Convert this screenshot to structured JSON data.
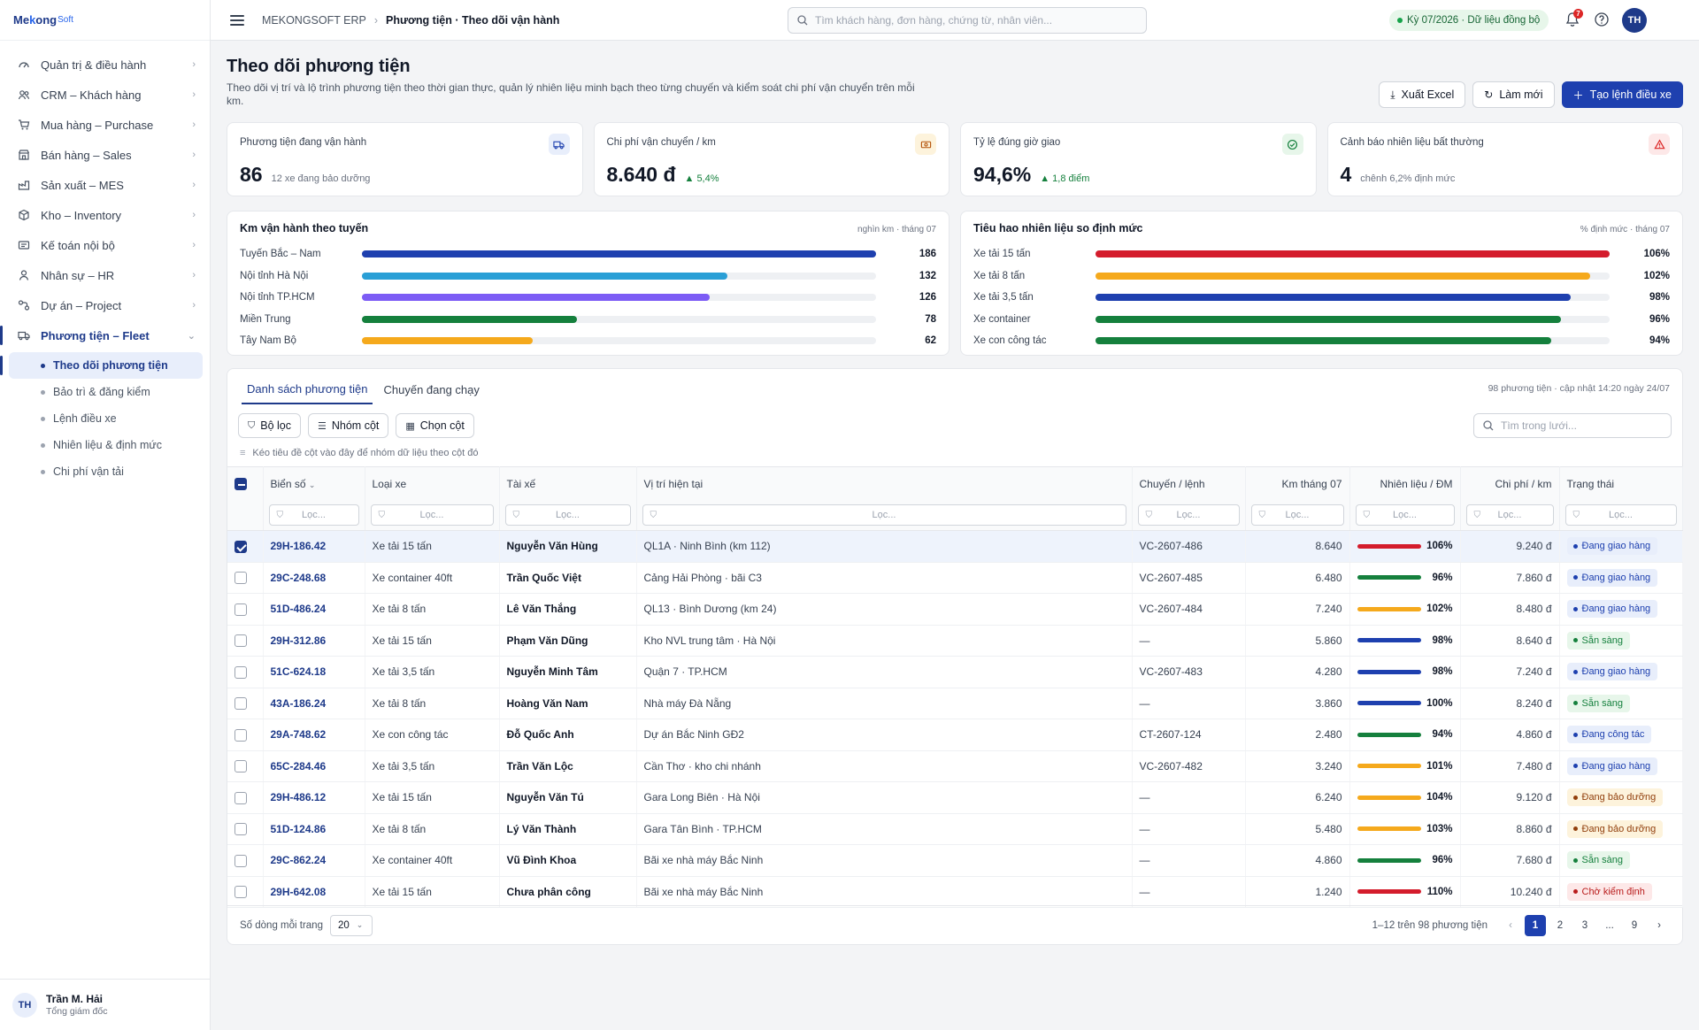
{
  "brand": {
    "main": "Me",
    "k": "k",
    "rest": "ong",
    "sub": "Soft"
  },
  "sidebar": {
    "items": [
      {
        "label": "Quản trị & điều hành",
        "icon": "gauge-icon"
      },
      {
        "label": "CRM – Khách hàng",
        "icon": "users-icon"
      },
      {
        "label": "Mua hàng – Purchase",
        "icon": "cart-icon"
      },
      {
        "label": "Bán hàng – Sales",
        "icon": "store-icon"
      },
      {
        "label": "Sản xuất – MES",
        "icon": "factory-icon"
      },
      {
        "label": "Kho – Inventory",
        "icon": "box-icon"
      },
      {
        "label": "Kế toán nội bộ",
        "icon": "ledger-icon"
      },
      {
        "label": "Nhân sự – HR",
        "icon": "person-icon"
      },
      {
        "label": "Dự án – Project",
        "icon": "project-icon"
      },
      {
        "label": "Phương tiện – Fleet",
        "icon": "truck-icon",
        "active": true
      }
    ],
    "subitems": [
      {
        "label": "Theo dõi phương tiện",
        "active": true
      },
      {
        "label": "Bảo trì & đăng kiểm"
      },
      {
        "label": "Lệnh điều xe"
      },
      {
        "label": "Nhiên liệu & định mức"
      },
      {
        "label": "Chi phí vận tải"
      }
    ],
    "user": {
      "initials": "TH",
      "name": "Trần M. Hải",
      "role": "Tổng giám đốc"
    }
  },
  "topbar": {
    "crumb_root": "MEKONGSOFT ERP",
    "crumb_current": "Phương tiện · Theo dõi vận hành",
    "search_placeholder": "Tìm khách hàng, đơn hàng, chứng từ, nhân viên...",
    "period": "Kỳ 07/2026 · Dữ liệu đồng bộ",
    "notif_count": "7",
    "avatar": "TH"
  },
  "page": {
    "title": "Theo dõi phương tiện",
    "desc": "Theo dõi vị trí và lộ trình phương tiện theo thời gian thực, quản lý nhiên liệu minh bạch theo từng chuyến và kiểm soát chi phí vận chuyển trên mỗi km.",
    "export_label": "Xuất Excel",
    "refresh_label": "Làm mới",
    "create_label": "Tạo lệnh điều xe"
  },
  "kpis": [
    {
      "title": "Phương tiện đang vận hành",
      "value": "86",
      "note": "12 xe đang bảo dưỡng",
      "icon": "truck-icon",
      "color": "#1e40af",
      "bg": "#e8eefb"
    },
    {
      "title": "Chi phí vận chuyển / km",
      "value": "8.640 đ",
      "delta": "▲ 5,4%",
      "icon": "cash-icon",
      "color": "#b45309",
      "bg": "#fdf3dc"
    },
    {
      "title": "Tỷ lệ đúng giờ giao",
      "value": "94,6%",
      "delta": "▲ 1,8 điểm",
      "icon": "check-circle-icon",
      "color": "#15803d",
      "bg": "#e7f6ea"
    },
    {
      "title": "Cảnh báo nhiên liệu bất thường",
      "value": "4",
      "note": "chênh 6,2% định mức",
      "icon": "warning-icon",
      "color": "#dc2626",
      "bg": "#fde8e8"
    }
  ],
  "route_chart": {
    "title": "Km vận hành theo tuyến",
    "unit": "nghìn km · tháng 07"
  },
  "fuel_chart": {
    "title": "Tiêu hao nhiên liệu so định mức",
    "unit": "% định mức · tháng 07"
  },
  "chart_data": [
    {
      "type": "bar",
      "orientation": "horizontal",
      "title": "Km vận hành theo tuyến",
      "categories": [
        "Tuyến Bắc – Nam",
        "Nội tỉnh Hà Nội",
        "Nội tỉnh TP.HCM",
        "Miền Trung",
        "Tây Nam Bộ"
      ],
      "values": [
        186,
        132,
        126,
        78,
        62
      ],
      "labels": [
        "186",
        "132",
        "126",
        "78",
        "62"
      ],
      "colors": [
        "#1e40af",
        "#2a9fd6",
        "#7c5cf5",
        "#15803d",
        "#f5a91c"
      ],
      "max": 186
    },
    {
      "type": "bar",
      "orientation": "horizontal",
      "title": "Tiêu hao nhiên liệu so định mức",
      "categories": [
        "Xe tải 15 tấn",
        "Xe tải 8 tấn",
        "Xe tải 3,5 tấn",
        "Xe container",
        "Xe con công tác"
      ],
      "values": [
        106,
        102,
        98,
        96,
        94
      ],
      "labels": [
        "106%",
        "102%",
        "98%",
        "96%",
        "94%"
      ],
      "colors": [
        "#d41c2c",
        "#f5a91c",
        "#1e40af",
        "#15803d",
        "#15803d"
      ],
      "max": 106
    }
  ],
  "grid": {
    "tabs": [
      "Danh sách phương tiện",
      "Chuyến đang chạy"
    ],
    "meta": "98 phương tiện · cập nhật 14:20 ngày 24/07",
    "tool_filter": "Bộ lọc",
    "tool_group": "Nhóm cột",
    "tool_columns": "Chọn cột",
    "search_placeholder": "Tìm trong lưới...",
    "hint": "Kéo tiêu đề cột vào đây để nhóm dữ liệu theo cột đó",
    "filter_placeholder": "Lọc...",
    "columns": [
      "Biển số",
      "Loại xe",
      "Tài xế",
      "Vị trí hiện tại",
      "Chuyến / lệnh",
      "Km tháng 07",
      "Nhiên liệu / ĐM",
      "Chi phí / km",
      "Trạng thái"
    ],
    "rows": [
      {
        "plate": "29H-186.42",
        "type": "Xe tải 15 tấn",
        "driver": "Nguyễn Văn Hùng",
        "loc": "QL1A · Ninh Bình (km 112)",
        "trip": "VC-2607-486",
        "km": "8.640",
        "fuel": "106%",
        "fuelColor": "#d41c2c",
        "cost": "9.240 đ",
        "status": "Đang giao hàng",
        "stype": "blue",
        "sel": true
      },
      {
        "plate": "29C-248.68",
        "type": "Xe container 40ft",
        "driver": "Trần Quốc Việt",
        "loc": "Cảng Hải Phòng · bãi C3",
        "trip": "VC-2607-485",
        "km": "6.480",
        "fuel": "96%",
        "fuelColor": "#15803d",
        "cost": "7.860 đ",
        "status": "Đang giao hàng",
        "stype": "blue"
      },
      {
        "plate": "51D-486.24",
        "type": "Xe tải 8 tấn",
        "driver": "Lê Văn Thắng",
        "loc": "QL13 · Bình Dương (km 24)",
        "trip": "VC-2607-484",
        "km": "7.240",
        "fuel": "102%",
        "fuelColor": "#f5a91c",
        "cost": "8.480 đ",
        "status": "Đang giao hàng",
        "stype": "blue"
      },
      {
        "plate": "29H-312.86",
        "type": "Xe tải 15 tấn",
        "driver": "Phạm Văn Dũng",
        "loc": "Kho NVL trung tâm · Hà Nội",
        "trip": "—",
        "km": "5.860",
        "fuel": "98%",
        "fuelColor": "#1e40af",
        "cost": "8.640 đ",
        "status": "Sẵn sàng",
        "stype": "green"
      },
      {
        "plate": "51C-624.18",
        "type": "Xe tải 3,5 tấn",
        "driver": "Nguyễn Minh Tâm",
        "loc": "Quận 7 · TP.HCM",
        "trip": "VC-2607-483",
        "km": "4.280",
        "fuel": "98%",
        "fuelColor": "#1e40af",
        "cost": "7.240 đ",
        "status": "Đang giao hàng",
        "stype": "blue"
      },
      {
        "plate": "43A-186.24",
        "type": "Xe tải 8 tấn",
        "driver": "Hoàng Văn Nam",
        "loc": "Nhà máy Đà Nẵng",
        "trip": "—",
        "km": "3.860",
        "fuel": "100%",
        "fuelColor": "#1e40af",
        "cost": "8.240 đ",
        "status": "Sẵn sàng",
        "stype": "green"
      },
      {
        "plate": "29A-748.62",
        "type": "Xe con công tác",
        "driver": "Đỗ Quốc Anh",
        "loc": "Dự án Bắc Ninh GĐ2",
        "trip": "CT-2607-124",
        "km": "2.480",
        "fuel": "94%",
        "fuelColor": "#15803d",
        "cost": "4.860 đ",
        "status": "Đang công tác",
        "stype": "blue"
      },
      {
        "plate": "65C-284.46",
        "type": "Xe tải 3,5 tấn",
        "driver": "Trần Văn Lộc",
        "loc": "Cần Thơ · kho chi nhánh",
        "trip": "VC-2607-482",
        "km": "3.240",
        "fuel": "101%",
        "fuelColor": "#f5a91c",
        "cost": "7.480 đ",
        "status": "Đang giao hàng",
        "stype": "blue"
      },
      {
        "plate": "29H-486.12",
        "type": "Xe tải 15 tấn",
        "driver": "Nguyễn Văn Tú",
        "loc": "Gara Long Biên · Hà Nội",
        "trip": "—",
        "km": "6.240",
        "fuel": "104%",
        "fuelColor": "#f5a91c",
        "cost": "9.120 đ",
        "status": "Đang bảo dưỡng",
        "stype": "amber"
      },
      {
        "plate": "51D-124.86",
        "type": "Xe tải 8 tấn",
        "driver": "Lý Văn Thành",
        "loc": "Gara Tân Bình · TP.HCM",
        "trip": "—",
        "km": "5.480",
        "fuel": "103%",
        "fuelColor": "#f5a91c",
        "cost": "8.860 đ",
        "status": "Đang bảo dưỡng",
        "stype": "amber"
      },
      {
        "plate": "29C-862.24",
        "type": "Xe container 40ft",
        "driver": "Vũ Đình Khoa",
        "loc": "Bãi xe nhà máy Bắc Ninh",
        "trip": "—",
        "km": "4.860",
        "fuel": "96%",
        "fuelColor": "#15803d",
        "cost": "7.680 đ",
        "status": "Sẵn sàng",
        "stype": "green"
      },
      {
        "plate": "29H-642.08",
        "type": "Xe tải 15 tấn",
        "driver": "Chưa phân công",
        "loc": "Bãi xe nhà máy Bắc Ninh",
        "trip": "—",
        "km": "1.240",
        "fuel": "110%",
        "fuelColor": "#d41c2c",
        "cost": "10.240 đ",
        "status": "Chờ kiểm định",
        "stype": "red"
      }
    ],
    "pager": {
      "label": "Số dòng mỗi trang",
      "size": "20",
      "info": "1–12 trên 98 phương tiện",
      "pages": [
        "1",
        "2",
        "3",
        "...",
        "9"
      ]
    }
  },
  "status_colors": {
    "blue": {
      "fg": "#1e40af",
      "bg": "#e8eefb"
    },
    "green": {
      "fg": "#15803d",
      "bg": "#e7f6ea"
    },
    "amber": {
      "fg": "#92400e",
      "bg": "#fdf3dc"
    },
    "red": {
      "fg": "#b91c1c",
      "bg": "#fde8e8"
    }
  }
}
